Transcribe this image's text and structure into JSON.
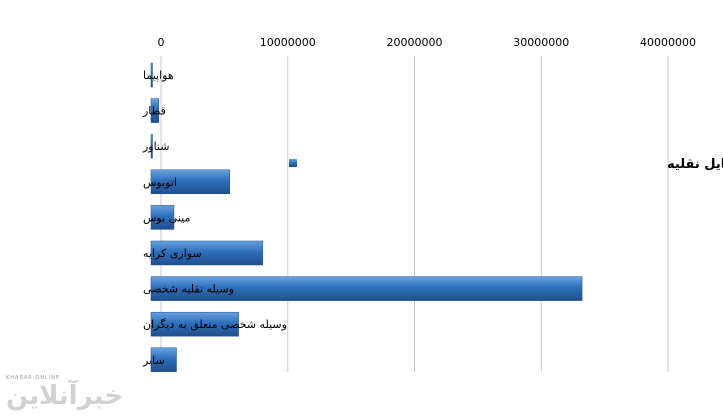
{
  "chart_data": {
    "type": "bar",
    "orientation": "horizontal",
    "title": "",
    "xlabel": "",
    "ylabel": "",
    "xlim": [
      0,
      40000000
    ],
    "x_ticks": [
      "0",
      "10000000",
      "20000000",
      "30000000",
      "40000000"
    ],
    "x_tick_values": [
      0,
      10000000,
      20000000,
      30000000,
      40000000
    ],
    "x_axis_position": "top",
    "grid": true,
    "legend": {
      "label": "تعداد سفرهای داخلی ایرانی ها براساس تعداد وسایل نقلیه",
      "placement": "right"
    },
    "categories": [
      "هواپیما",
      "قطار",
      "شناور",
      "اتوبوس",
      "مینی بوس",
      "سواری کرایه",
      "وسیله نقلیه شخصی",
      "وسیله شخصی متعلق به دیگران",
      "سایر"
    ],
    "series": [
      {
        "values": [
          800000,
          1400000,
          200000,
          7000000,
          2600000,
          9600000,
          34800000,
          7700000,
          2800000
        ]
      }
    ],
    "colors": {
      "bar": "#2f6fbb",
      "bar_light": "#6aa2e0",
      "bar_dark": "#1f4f8e",
      "grid": "#c8c8c8"
    }
  },
  "watermark": {
    "small": "KHABAR ONLINE",
    "big": "خبرآنلاین"
  }
}
